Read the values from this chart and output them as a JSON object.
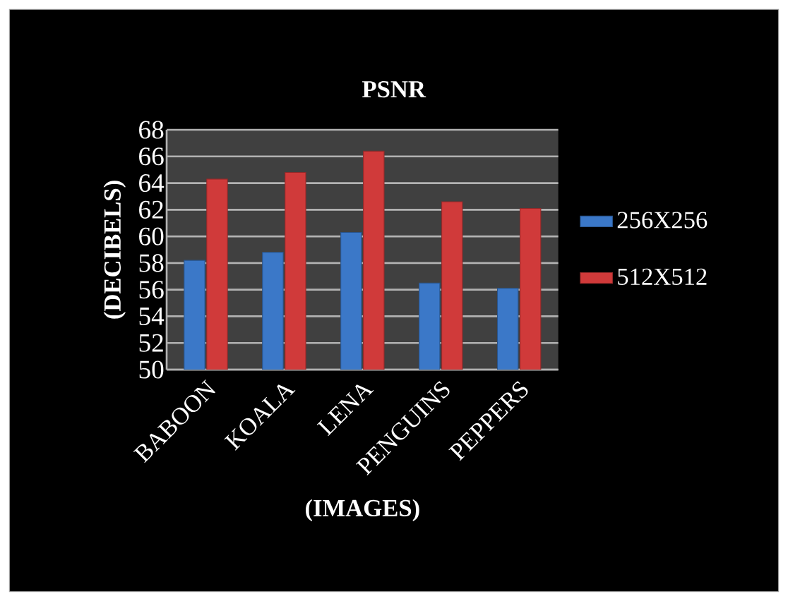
{
  "chart_data": {
    "type": "bar",
    "title": "PSNR",
    "xlabel": "(IMAGES)",
    "ylabel": "(DECIBELS)",
    "categories": [
      "BABOON",
      "KOALA",
      "LENA",
      "PENGUINS",
      "PEPPERS"
    ],
    "series": [
      {
        "name": "256X256",
        "color": "#3b78c8",
        "values": [
          58.2,
          58.8,
          60.3,
          56.5,
          56.1
        ]
      },
      {
        "name": "512X512",
        "color": "#d03a3a",
        "values": [
          64.3,
          64.8,
          66.4,
          62.6,
          62.1
        ]
      }
    ],
    "ylim": [
      50,
      68
    ],
    "yticks": [
      50,
      52,
      54,
      56,
      58,
      60,
      62,
      64,
      66,
      68
    ],
    "grid": "y",
    "legend": "right"
  }
}
